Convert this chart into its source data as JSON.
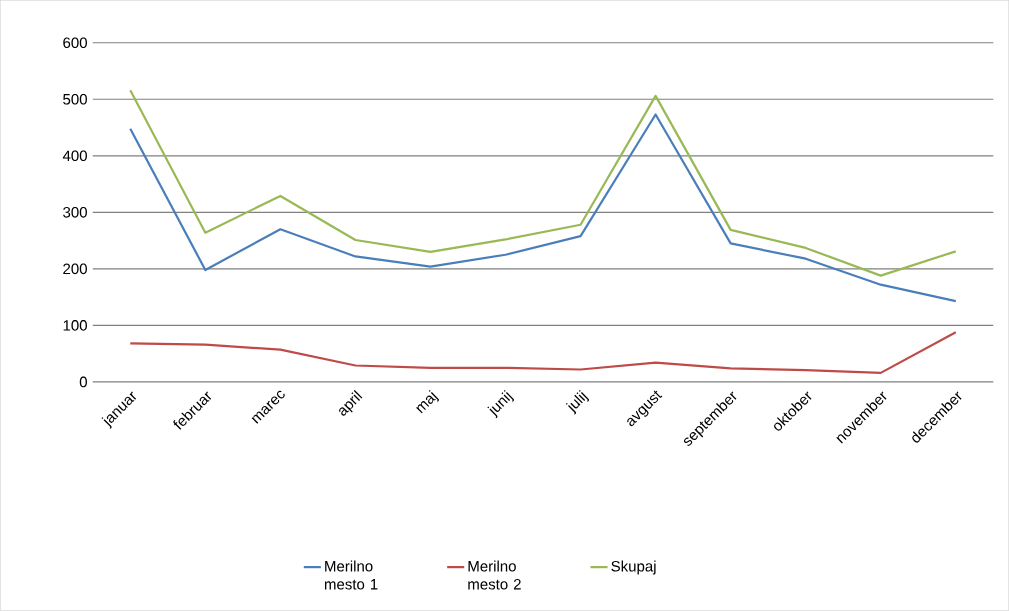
{
  "chart_data": {
    "type": "line",
    "categories": [
      "januar",
      "februar",
      "marec",
      "april",
      "maj",
      "junij",
      "julij",
      "avgust",
      "september",
      "oktober",
      "november",
      "december"
    ],
    "series": [
      {
        "name": "Merilno mesto 1",
        "color": "#4a7ebb",
        "values": [
          448,
          198,
          270,
          222,
          204,
          225,
          258,
          473,
          245,
          218,
          172,
          143
        ]
      },
      {
        "name": "Merilno mesto 2",
        "color": "#be4b48",
        "values": [
          68,
          66,
          57,
          29,
          25,
          25,
          22,
          34,
          24,
          21,
          16,
          88
        ]
      },
      {
        "name": "Skupaj",
        "color": "#98b954",
        "values": [
          516,
          264,
          329,
          251,
          230,
          252,
          278,
          506,
          269,
          237,
          188,
          231
        ]
      }
    ],
    "ylim": [
      0,
      600
    ],
    "yticks": [
      0,
      100,
      200,
      300,
      400,
      500,
      600
    ],
    "grid": "y",
    "legend": "bottom",
    "marker": "none",
    "line_style": "solid"
  }
}
